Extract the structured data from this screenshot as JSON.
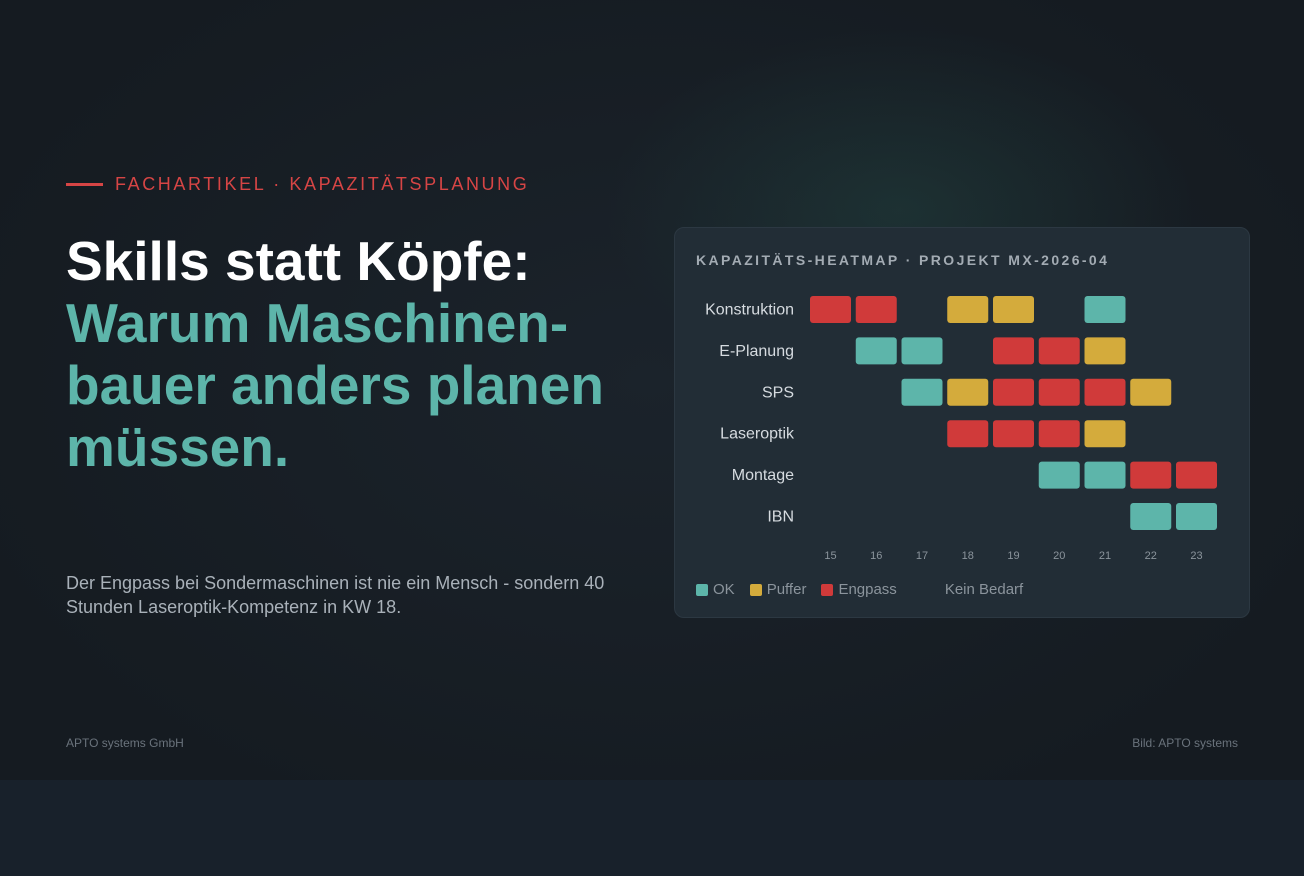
{
  "kicker": "FACHARTIKEL · KAPAZITÄTSPLANUNG",
  "headline": {
    "line1": "Skills statt Köpfe:",
    "line2": "Warum Maschinen-bauer anders planen müssen."
  },
  "intro": "Der Engpass bei Sondermaschinen ist nie ein Mensch - sondern 40 Stunden Laseroptik-Kompetenz in KW 18.",
  "footer": {
    "company": "APTO systems GmbH",
    "credit": "Bild: APTO systems"
  },
  "colors": {
    "ok": "#5db5aa",
    "puffer": "#d4ab3c",
    "engpass": "#d03a3a"
  },
  "chart_data": {
    "type": "heatmap",
    "title": "KAPAZITÄTS-HEATMAP · PROJEKT MX-2026-04",
    "rows": [
      "Konstruktion",
      "E-Planung",
      "SPS",
      "Laseroptik",
      "Montage",
      "IBN"
    ],
    "columns": [
      "15",
      "16",
      "17",
      "18",
      "19",
      "20",
      "21",
      "22",
      "23"
    ],
    "values": [
      [
        "engpass",
        "engpass",
        null,
        "puffer",
        "puffer",
        null,
        "ok",
        null,
        null
      ],
      [
        null,
        "ok",
        "ok",
        null,
        "engpass",
        "engpass",
        "puffer",
        null,
        null
      ],
      [
        null,
        null,
        "ok",
        "puffer",
        "engpass",
        "engpass",
        "engpass",
        "puffer",
        null
      ],
      [
        null,
        null,
        null,
        "engpass",
        "engpass",
        "engpass",
        "puffer",
        null,
        null
      ],
      [
        null,
        null,
        null,
        null,
        null,
        "ok",
        "ok",
        "engpass",
        "engpass"
      ],
      [
        null,
        null,
        null,
        null,
        null,
        null,
        null,
        "ok",
        "ok"
      ]
    ],
    "legend": [
      {
        "key": "ok",
        "label": "OK"
      },
      {
        "key": "puffer",
        "label": "Puffer"
      },
      {
        "key": "engpass",
        "label": "Engpass"
      }
    ],
    "empty_label": "Kein Bedarf"
  }
}
